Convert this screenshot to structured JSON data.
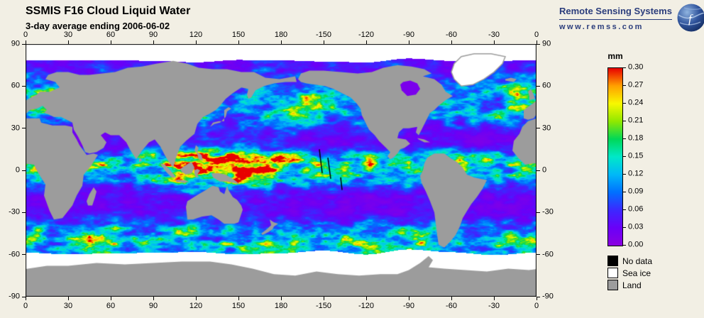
{
  "header": {
    "title": "SSMIS F16 Cloud Liquid Water",
    "subtitle": "3-day average ending 2006-06-02"
  },
  "branding": {
    "org": "Remote Sensing Systems",
    "url": "www.remss.com"
  },
  "chart_data": {
    "type": "heatmap",
    "title": "SSMIS F16 Cloud Liquid Water",
    "subtitle": "3-day average ending 2006-06-02",
    "projection": "global equirectangular, dateline-centered (0E to 360E)",
    "axes": {
      "lon_ticks": [
        "0",
        "30",
        "60",
        "90",
        "120",
        "150",
        "180",
        "-150",
        "-120",
        "-90",
        "-60",
        "-30",
        "0"
      ],
      "lat_ticks": [
        "90",
        "60",
        "30",
        "0",
        "-30",
        "-60",
        "-90"
      ]
    },
    "colorbar": {
      "unit": "mm",
      "min": 0.0,
      "max": 0.3,
      "tick_labels": [
        "0.30",
        "0.27",
        "0.24",
        "0.21",
        "0.18",
        "0.15",
        "0.12",
        "0.09",
        "0.06",
        "0.03",
        "0.00"
      ],
      "colors_bottom_to_top": [
        "#8a00e0",
        "#6a00f8",
        "#3c28ff",
        "#0070ff",
        "#00b8f8",
        "#00e8c8",
        "#00d858",
        "#90e800",
        "#f8f800",
        "#ffa000",
        "#e80000"
      ]
    },
    "legend": [
      {
        "label": "No data",
        "color": "#000000"
      },
      {
        "label": "Sea ice",
        "color": "#ffffff"
      },
      {
        "label": "Land",
        "color": "#9c9c9c"
      }
    ],
    "map_colors": {
      "ocean_low": "#8a00e0",
      "land": "#9c9c9c",
      "sea_ice": "#ffffff",
      "no_data": "#000000"
    },
    "no_data_streaks": [
      [
        207,
        15,
        209,
        -2
      ],
      [
        213,
        9,
        215,
        -6
      ],
      [
        222,
        -5,
        223,
        -14
      ]
    ],
    "notes": "Ocean mostly 0.00-0.06 mm (purple); ITCZ, warm pool and mid-latitude storm tracks reach 0.15-0.30 mm (green to red); white = sea ice bands near poles; gray = land; black slivers = missing data."
  }
}
